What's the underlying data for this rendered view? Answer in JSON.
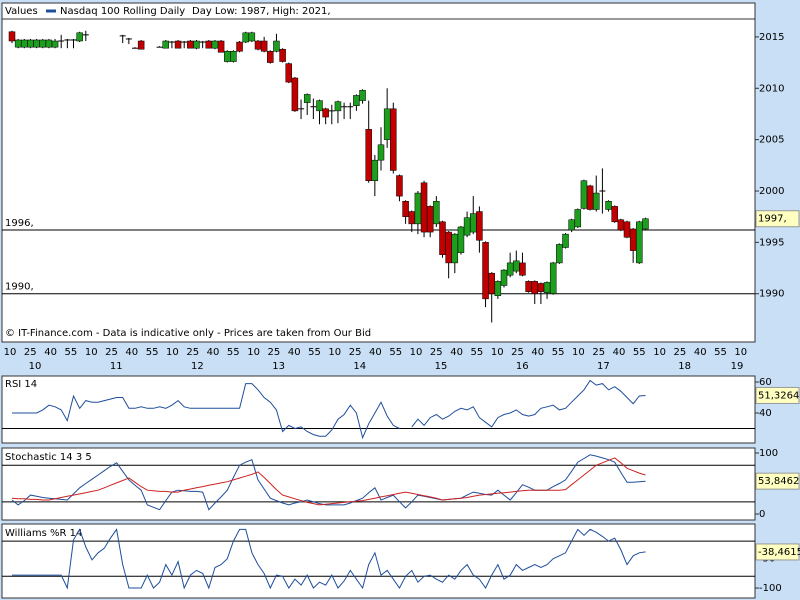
{
  "chart_data": [
    {
      "type": "candlestick",
      "title": "Values",
      "series_name": "Nasdaq 100 Rolling Daily",
      "subtitle": "Day Low: 1987, High: 2021,",
      "annotation": "© IT-Finance.com - Data is indicative only - Prices are taken from Our Bid",
      "up_color": "#1e9e1e",
      "down_color": "#c00000",
      "ylim": [
        1985.3,
        2018.3
      ],
      "yticks": [
        1990,
        1995,
        2000,
        2005,
        2010,
        2015
      ],
      "levels": [
        {
          "value": 1996.2,
          "label": "1996,"
        },
        {
          "value": 1990,
          "label": "1990,"
        }
      ],
      "last_label": "1997,",
      "x_minutes": [
        "10",
        "25",
        "40",
        "55",
        "10",
        "25",
        "40",
        "55",
        "10",
        "25",
        "40",
        "55",
        "10",
        "25",
        "40",
        "55",
        "10",
        "25",
        "40",
        "55",
        "10",
        "25",
        "40",
        "55",
        "10",
        "25",
        "40",
        "55",
        "10",
        "25",
        "40",
        "55",
        "10",
        "25",
        "40",
        "55",
        "10"
      ],
      "x_hours": [
        "10",
        "11",
        "12",
        "13",
        "14",
        "15",
        "16",
        "17",
        "18",
        "19"
      ],
      "candles": [
        [
          2015.5,
          2015.6,
          2014.4,
          2014.6
        ],
        [
          2014.0,
          2014.8,
          2013.9,
          2014.7
        ],
        [
          2014.0,
          2014.8,
          2013.9,
          2014.7
        ],
        [
          2014.0,
          2014.8,
          2013.9,
          2014.7
        ],
        [
          2014.0,
          2014.8,
          2013.9,
          2014.7
        ],
        [
          2014.0,
          2014.8,
          2013.9,
          2014.7
        ],
        [
          2014.0,
          2014.8,
          2013.9,
          2014.7
        ],
        [
          2014.0,
          2014.8,
          2013.9,
          2014.6
        ],
        [
          2014.6,
          2015.2,
          2013.9,
          2014.6
        ],
        [
          2014.7,
          2014.8,
          2013.9,
          2014.7
        ],
        [
          2014.7,
          2014.8,
          2013.9,
          2014.7
        ],
        [
          2014.6,
          2015.5,
          2014.5,
          2015.4
        ],
        [
          2015.2,
          2015.6,
          2014.6,
          2015.2
        ],
        null,
        null,
        null,
        null,
        null,
        [
          2015.1,
          2015.2,
          2014.4,
          2015.1
        ],
        [
          2014.8,
          2014.9,
          2014.3,
          2014.8
        ],
        [
          2013.9,
          2014.0,
          2013.9,
          2013.9
        ],
        [
          2014.6,
          2014.7,
          2013.8,
          2013.8
        ],
        null,
        null,
        [
          2014.0,
          2014.1,
          2014.0,
          2014.0
        ],
        [
          2013.9,
          2014.7,
          2013.9,
          2014.6
        ],
        [
          2014.5,
          2014.6,
          2013.9,
          2014.5
        ],
        [
          2014.6,
          2014.7,
          2013.9,
          2013.9
        ],
        [
          2014.5,
          2014.6,
          2013.9,
          2014.5
        ],
        [
          2014.6,
          2014.7,
          2013.9,
          2013.9
        ],
        [
          2013.9,
          2014.7,
          2013.8,
          2014.6
        ],
        [
          2014.5,
          2014.6,
          2013.9,
          2014.5
        ],
        [
          2014.6,
          2014.7,
          2013.9,
          2013.9
        ],
        [
          2013.9,
          2014.7,
          2013.8,
          2014.6
        ],
        [
          2014.6,
          2014.7,
          2013.5,
          2013.5
        ],
        [
          2012.6,
          2013.7,
          2012.5,
          2013.6
        ],
        [
          2012.6,
          2013.7,
          2012.5,
          2013.6
        ],
        [
          2014.5,
          2014.6,
          2013.5,
          2013.6
        ],
        [
          2014.5,
          2015.5,
          2014.4,
          2015.4
        ],
        [
          2014.6,
          2015.5,
          2014.5,
          2015.4
        ],
        [
          2014.6,
          2014.7,
          2013.7,
          2013.8
        ],
        [
          2014.6,
          2015.0,
          2013.5,
          2013.6
        ],
        [
          2013.6,
          2013.7,
          2012.4,
          2012.5
        ],
        [
          2013.6,
          2015.3,
          2013.5,
          2014.6
        ],
        [
          2013.8,
          2013.9,
          2012.5,
          2012.6
        ],
        [
          2012.4,
          2012.5,
          2010.5,
          2010.6
        ],
        [
          2011.0,
          2011.1,
          2007.7,
          2007.8
        ],
        [
          2008.0,
          2008.9,
          2007.0,
          2008.0
        ],
        [
          2008.6,
          2009.5,
          2007.4,
          2009.4
        ],
        [
          2008.2,
          2009.0,
          2007.0,
          2008.2
        ],
        [
          2007.8,
          2008.9,
          2006.5,
          2008.8
        ],
        [
          2008.0,
          2008.1,
          2006.5,
          2007.2
        ],
        [
          2007.8,
          2008.4,
          2006.5,
          2007.8
        ],
        [
          2007.8,
          2008.8,
          2006.6,
          2008.7
        ],
        [
          2008.2,
          2008.6,
          2007.0,
          2008.2
        ],
        [
          2008.2,
          2008.6,
          2007.0,
          2008.2
        ],
        [
          2008.3,
          2009.4,
          2007.8,
          2009.3
        ],
        [
          2008.8,
          2009.9,
          2008.5,
          2009.8
        ],
        [
          2006.0,
          2008.8,
          2000.8,
          2001.0
        ],
        [
          2001.0,
          2003.5,
          1999.5,
          2003.0
        ],
        [
          2003.0,
          2006.2,
          2002.0,
          2004.5
        ],
        [
          2005.0,
          2010.0,
          2004.2,
          2008.0
        ],
        [
          2008.0,
          2008.6,
          2001.7,
          2002.0
        ],
        [
          2001.5,
          2001.6,
          1999.0,
          1999.5
        ],
        [
          1999.0,
          1999.1,
          1996.8,
          1997.5
        ],
        [
          1998.0,
          1998.1,
          1996.0,
          1996.8
        ],
        [
          1996.8,
          2000.0,
          1995.8,
          1999.8
        ],
        [
          2000.8,
          2001.0,
          1995.5,
          1996.0
        ],
        [
          1998.5,
          1998.6,
          1995.5,
          1996.0
        ],
        [
          1996.8,
          1999.5,
          1996.5,
          1999.0
        ],
        [
          1997.0,
          1997.1,
          1993.5,
          1993.8
        ],
        [
          1996.0,
          1996.1,
          1991.5,
          1993.0
        ],
        [
          1993.0,
          1995.9,
          1992.0,
          1995.8
        ],
        [
          1994.0,
          1996.6,
          1993.8,
          1996.5
        ],
        [
          1995.7,
          1998.0,
          1995.5,
          1997.4
        ],
        [
          1996.0,
          1999.5,
          1995.8,
          1997.8
        ],
        [
          1998.0,
          1998.5,
          1994.0,
          1995.2
        ],
        [
          1995.0,
          1995.1,
          1988.7,
          1989.5
        ],
        [
          1992.0,
          1992.1,
          1987.2,
          1990.0
        ],
        [
          1989.8,
          1991.3,
          1989.5,
          1991.2
        ],
        [
          1990.8,
          1992.4,
          1990.6,
          1992.3
        ],
        [
          1991.8,
          1994.0,
          1991.6,
          1993.0
        ],
        [
          1992.2,
          1994.2,
          1992.0,
          1993.2
        ],
        [
          1993.0,
          1994.0,
          1991.7,
          1991.8
        ],
        [
          1991.2,
          1991.3,
          1990.1,
          1990.2
        ],
        [
          1991.2,
          1991.3,
          1989.0,
          1990.0
        ],
        [
          1991.0,
          1991.1,
          1989.0,
          1990.2
        ],
        [
          1990.1,
          1991.2,
          1989.5,
          1991.1
        ],
        [
          1990.0,
          1993.1,
          1989.9,
          1993.0
        ],
        [
          1993.0,
          1994.9,
          1992.9,
          1994.8
        ],
        [
          1994.5,
          1995.9,
          1994.4,
          1995.8
        ],
        [
          1996.2,
          1997.3,
          1996.0,
          1997.2
        ],
        [
          1996.5,
          1998.3,
          1996.4,
          1998.2
        ],
        [
          1998.3,
          2001.1,
          1998.2,
          2001.0
        ],
        [
          2000.5,
          2000.6,
          1998.1,
          1998.2
        ],
        [
          1998.2,
          2001.5,
          1998.0,
          1999.8
        ],
        [
          2000.0,
          2002.2,
          1997.8,
          2000.0
        ],
        [
          1998.2,
          1999.1,
          1998.0,
          1999.0
        ],
        [
          1998.5,
          1998.6,
          1996.9,
          1997.0
        ],
        [
          1997.2,
          1997.3,
          1996.1,
          1996.2
        ],
        [
          1997.0,
          1997.1,
          1995.4,
          1995.5
        ],
        [
          1996.3,
          1996.4,
          1993.0,
          1994.2
        ],
        [
          1993.0,
          1997.1,
          1992.9,
          1997.0
        ],
        [
          1996.3,
          1997.4,
          1996.2,
          1997.3
        ]
      ]
    },
    {
      "type": "line",
      "title": "RSI 14",
      "ylim": [
        20.6,
        63.9
      ],
      "yticks": [
        40,
        60
      ],
      "levels": [
        30
      ],
      "series": [
        {
          "color": "#1f4e9c",
          "last_label": "51,3264",
          "values": [
            40,
            40,
            40,
            40,
            40,
            42,
            45,
            44,
            42,
            35,
            51,
            43,
            48,
            47,
            47,
            48,
            49,
            50,
            50,
            43,
            43,
            44,
            43,
            43,
            44,
            43,
            45,
            48,
            44,
            43,
            43,
            43,
            43,
            43,
            43,
            43,
            43,
            43,
            59,
            59,
            55,
            50,
            47,
            42,
            28,
            32,
            30,
            31,
            28,
            26,
            25,
            25,
            29,
            36,
            39,
            45,
            40,
            24,
            33,
            40,
            47,
            38,
            32,
            30,
            null,
            31,
            36,
            32,
            37,
            39,
            36,
            38,
            41,
            43,
            42,
            44,
            37,
            34,
            31,
            37,
            39,
            40,
            42,
            39,
            38,
            39,
            43,
            44,
            45,
            42,
            43,
            47,
            51,
            55,
            61,
            58,
            59,
            55,
            57,
            54,
            50,
            46,
            51,
            51.3264
          ]
        }
      ]
    },
    {
      "type": "line",
      "title": "Stochastic 14 3 5",
      "ylim": [
        -9.8,
        108.2
      ],
      "yticks": [
        0,
        100
      ],
      "levels": [
        20,
        80
      ],
      "series": [
        {
          "color": "#1f4e9c",
          "last_label": "53,8462",
          "values": [
            23,
            15,
            22,
            31,
            29,
            27,
            26,
            25,
            24,
            23,
            33,
            43,
            50,
            57,
            64,
            71,
            78,
            84,
            70,
            56,
            47,
            39,
            15,
            11,
            7,
            22,
            36,
            39,
            38,
            37,
            37,
            36,
            7,
            18,
            28,
            39,
            60,
            80,
            85,
            89,
            56,
            41,
            26,
            22,
            18,
            15,
            18,
            20,
            23,
            20,
            17,
            15,
            15,
            15,
            15,
            18,
            22,
            26,
            35,
            43,
            23,
            27,
            31,
            20,
            10,
            20,
            31,
            29,
            27,
            25,
            23,
            24,
            25,
            26,
            31,
            36,
            34,
            32,
            31,
            39,
            31,
            23,
            35,
            48,
            44,
            39,
            39,
            39,
            45,
            50,
            56,
            70,
            85,
            91,
            97,
            95,
            92,
            89,
            85,
            68,
            52,
            52,
            53,
            53.8462
          ]
        },
        {
          "color": "#cc2222",
          "values": [
            26,
            25,
            25,
            24,
            24,
            23,
            23,
            25,
            27,
            29,
            31,
            33,
            35,
            37,
            39,
            43,
            47,
            51,
            55,
            59,
            52,
            45,
            39,
            38,
            37,
            37,
            36,
            36,
            39,
            41,
            43,
            45,
            47,
            49,
            51,
            53,
            56,
            59,
            62,
            65,
            69,
            60,
            50,
            40,
            31,
            28,
            25,
            22,
            19,
            17,
            15,
            16,
            17,
            18,
            19,
            20,
            21,
            22,
            24,
            26,
            28,
            30,
            32,
            34,
            36,
            34,
            32,
            30,
            28,
            26,
            23,
            24,
            25,
            26,
            27,
            29,
            31,
            32,
            33,
            34,
            35,
            36,
            37,
            38,
            39,
            39,
            39,
            39,
            39,
            39,
            40,
            48,
            56,
            64,
            72,
            80,
            84,
            88,
            92,
            84,
            75,
            71,
            67,
            64
          ]
        }
      ]
    },
    {
      "type": "line",
      "title": "Williams %R 14",
      "ylim": [
        -117,
        9.2
      ],
      "yticks": [
        -100,
        -50
      ],
      "levels": [
        -20,
        -80
      ],
      "series": [
        {
          "color": "#1f4e9c",
          "last_label": "-38,4615",
          "values": [
            -78,
            -78,
            -78,
            -78,
            -78,
            -78,
            -78,
            -78,
            -78,
            -100,
            -18,
            0,
            -30,
            -52,
            -40,
            -32,
            -15,
            0,
            -60,
            -100,
            -100,
            -100,
            -78,
            -100,
            -90,
            -60,
            -78,
            -55,
            -100,
            -78,
            -70,
            -75,
            -100,
            -65,
            -60,
            -50,
            -20,
            0,
            0,
            -40,
            -60,
            -75,
            -100,
            -78,
            -80,
            -100,
            -85,
            -95,
            -78,
            -100,
            -90,
            -95,
            -78,
            -100,
            -88,
            -70,
            -85,
            -100,
            -60,
            -40,
            -78,
            -70,
            -85,
            -100,
            -80,
            -70,
            -90,
            -80,
            -78,
            -85,
            -90,
            -78,
            -85,
            -70,
            -60,
            -78,
            -85,
            -100,
            -78,
            -60,
            -85,
            -78,
            -60,
            -70,
            -65,
            -60,
            -65,
            -60,
            -50,
            -45,
            -40,
            -20,
            0,
            -10,
            0,
            -5,
            -12,
            -20,
            -15,
            -35,
            -60,
            -45,
            -40,
            -38.4615
          ]
        }
      ]
    }
  ]
}
